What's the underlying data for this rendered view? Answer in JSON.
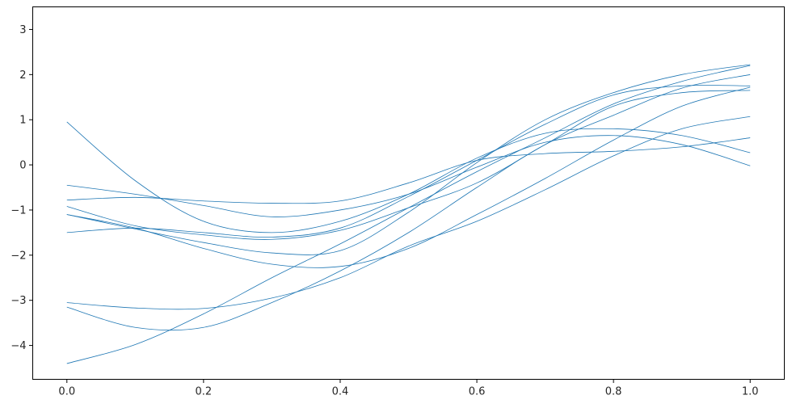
{
  "chart_data": {
    "type": "line",
    "title": "",
    "xlabel": "",
    "ylabel": "",
    "xlim": [
      -0.05,
      1.05
    ],
    "ylim": [
      -4.75,
      3.5
    ],
    "grid": false,
    "line_color": "#1f77b4",
    "x_ticks": [
      {
        "value": 0.0,
        "label": "0.0"
      },
      {
        "value": 0.2,
        "label": "0.2"
      },
      {
        "value": 0.4,
        "label": "0.4"
      },
      {
        "value": 0.6,
        "label": "0.6"
      },
      {
        "value": 0.8,
        "label": "0.8"
      },
      {
        "value": 1.0,
        "label": "1.0"
      }
    ],
    "y_ticks": [
      {
        "value": -4,
        "label": "−4"
      },
      {
        "value": -3,
        "label": "−3"
      },
      {
        "value": -2,
        "label": "−2"
      },
      {
        "value": -1,
        "label": "−1"
      },
      {
        "value": 0,
        "label": "0"
      },
      {
        "value": 1,
        "label": "1"
      },
      {
        "value": 2,
        "label": "2"
      },
      {
        "value": 3,
        "label": "3"
      }
    ],
    "x": [
      0.0,
      0.1,
      0.2,
      0.3,
      0.4,
      0.5,
      0.6,
      0.7,
      0.8,
      0.9,
      1.0
    ],
    "series": [
      {
        "values": [
          -4.4,
          -3.98,
          -3.3,
          -2.5,
          -1.75,
          -0.95,
          -0.15,
          0.6,
          1.35,
          1.85,
          2.2
        ]
      },
      {
        "values": [
          -3.05,
          -3.17,
          -3.18,
          -2.95,
          -2.5,
          -1.8,
          -1.25,
          -0.55,
          0.2,
          0.8,
          1.07
        ]
      },
      {
        "values": [
          -3.15,
          -3.6,
          -3.6,
          -3.05,
          -2.35,
          -1.5,
          -0.5,
          0.45,
          1.1,
          1.7,
          2.0
        ]
      },
      {
        "values": [
          0.95,
          -0.35,
          -1.25,
          -1.5,
          -1.25,
          -0.65,
          0.15,
          0.7,
          0.8,
          0.65,
          0.27
        ]
      },
      {
        "values": [
          -0.45,
          -0.65,
          -0.9,
          -1.15,
          -1.0,
          -0.65,
          -0.05,
          0.5,
          0.65,
          0.45,
          -0.02
        ]
      },
      {
        "values": [
          -0.78,
          -0.72,
          -0.8,
          -0.85,
          -0.8,
          -0.4,
          0.1,
          0.25,
          0.3,
          0.4,
          0.6
        ]
      },
      {
        "values": [
          -1.1,
          -1.42,
          -1.72,
          -1.95,
          -1.9,
          -1.05,
          0.05,
          1.0,
          1.6,
          2.0,
          2.22
        ]
      },
      {
        "values": [
          -1.5,
          -1.4,
          -1.5,
          -1.6,
          -1.4,
          -0.7,
          0.1,
          0.9,
          1.55,
          1.75,
          1.75
        ]
      },
      {
        "values": [
          -1.1,
          -1.4,
          -1.85,
          -2.2,
          -2.25,
          -1.85,
          -1.1,
          -0.3,
          0.55,
          1.3,
          1.72
        ]
      },
      {
        "values": [
          -0.92,
          -1.35,
          -1.55,
          -1.65,
          -1.45,
          -0.95,
          -0.4,
          0.45,
          1.3,
          1.6,
          1.65
        ]
      }
    ]
  }
}
